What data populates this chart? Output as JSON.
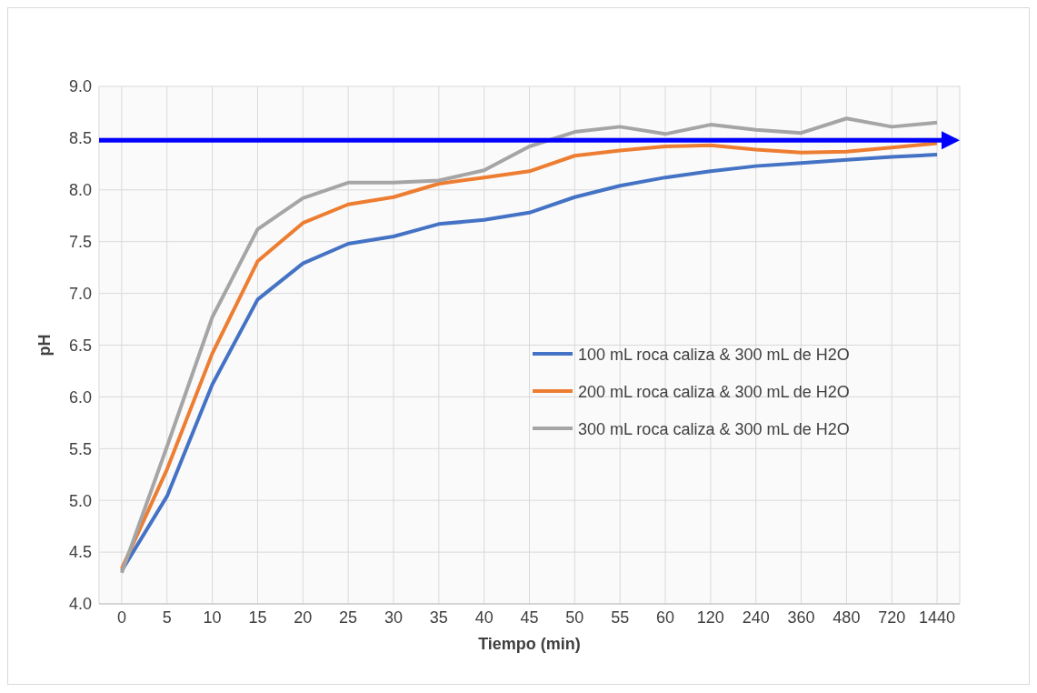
{
  "chart_data": {
    "type": "line",
    "xlabel": "Tiempo (min)",
    "ylabel": "pH",
    "categories": [
      "0",
      "5",
      "10",
      "15",
      "20",
      "25",
      "30",
      "35",
      "40",
      "45",
      "50",
      "55",
      "60",
      "120",
      "240",
      "360",
      "480",
      "720",
      "1440"
    ],
    "series": [
      {
        "name": "100 mL roca caliza & 300 mL de H2O",
        "color": "#4472c4",
        "values": [
          4.32,
          5.04,
          6.12,
          6.94,
          7.29,
          7.48,
          7.55,
          7.67,
          7.71,
          7.78,
          7.93,
          8.04,
          8.12,
          8.18,
          8.23,
          8.26,
          8.29,
          8.32,
          8.34
        ]
      },
      {
        "name": "200 mL roca caliza & 300 mL de H2O",
        "color": "#ed7d31",
        "values": [
          4.34,
          5.3,
          6.42,
          7.31,
          7.68,
          7.86,
          7.93,
          8.06,
          8.12,
          8.18,
          8.33,
          8.38,
          8.42,
          8.43,
          8.39,
          8.36,
          8.37,
          8.41,
          8.45
        ]
      },
      {
        "name": "300 mL roca caliza & 300 mL de H2O",
        "color": "#a5a5a5",
        "values": [
          4.3,
          5.52,
          6.77,
          7.62,
          7.92,
          8.07,
          8.07,
          8.09,
          8.19,
          8.42,
          8.56,
          8.61,
          8.54,
          8.63,
          8.58,
          8.55,
          8.69,
          8.61,
          8.65
        ]
      }
    ],
    "ylim": [
      4,
      9
    ],
    "yticks": [
      {
        "value": 4,
        "label": "4.0"
      },
      {
        "value": 4.5,
        "label": "4.5"
      },
      {
        "value": 5,
        "label": "5.0"
      },
      {
        "value": 5.5,
        "label": "5.5"
      },
      {
        "value": 6,
        "label": "6.0"
      },
      {
        "value": 6.5,
        "label": "6.5"
      },
      {
        "value": 7,
        "label": "7.0"
      },
      {
        "value": 7.5,
        "label": "7.5"
      },
      {
        "value": 8,
        "label": "8.0"
      },
      {
        "value": 8.5,
        "label": "8.5"
      },
      {
        "value": 9,
        "label": "9.0"
      }
    ],
    "ref_lines": [
      {
        "axis": "y",
        "value": 8.48,
        "color": "#0000ff"
      }
    ],
    "grid": true,
    "legend": "right",
    "marker": "none",
    "line_style": "solid"
  }
}
